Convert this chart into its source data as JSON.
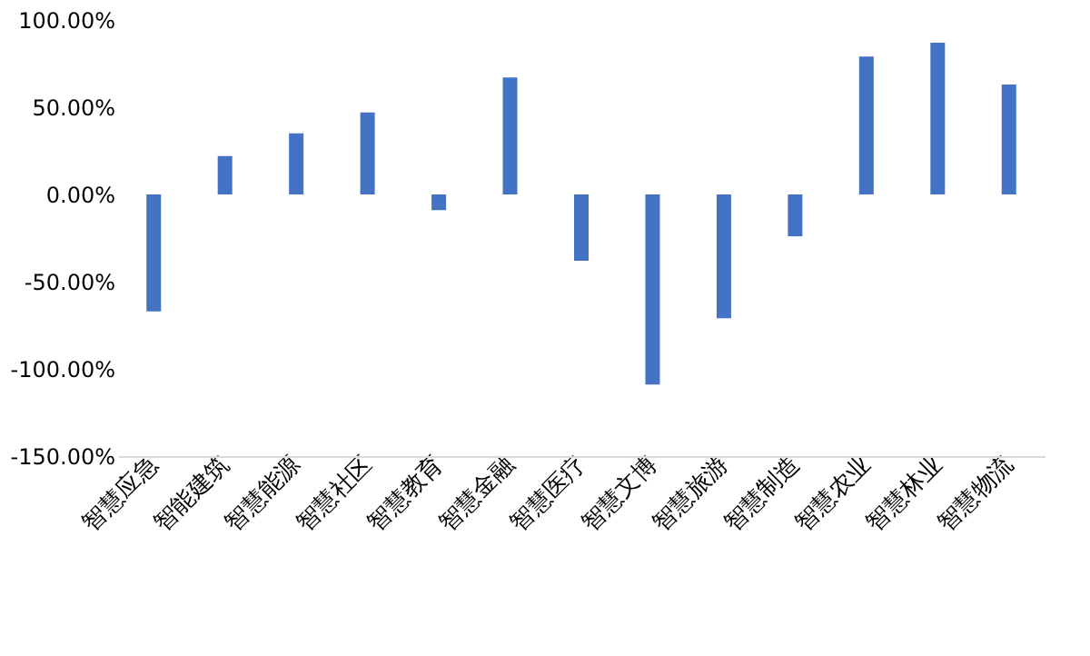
{
  "chart_data": {
    "type": "bar",
    "categories": [
      "智慧应急",
      "智能建筑",
      "智慧能源",
      "智慧社区",
      "智慧教育",
      "智慧金融",
      "智慧医疗",
      "智慧文博",
      "智慧旅游",
      "智慧制造",
      "智慧农业",
      "智慧林业",
      "智慧物流"
    ],
    "values": [
      -67,
      22,
      35,
      47,
      -9,
      67,
      -38,
      -109,
      -71,
      -24,
      79,
      87,
      63
    ],
    "color": "#4472c4",
    "ylim": [
      -150,
      100
    ],
    "yticks": [
      {
        "value": -150,
        "label": "-150.00%"
      },
      {
        "value": -100,
        "label": "-100.00%"
      },
      {
        "value": -50,
        "label": "-50.00%"
      },
      {
        "value": 0,
        "label": "0.00%"
      },
      {
        "value": 50,
        "label": "50.00%"
      },
      {
        "value": 100,
        "label": "100.00%"
      }
    ],
    "grid": false
  }
}
